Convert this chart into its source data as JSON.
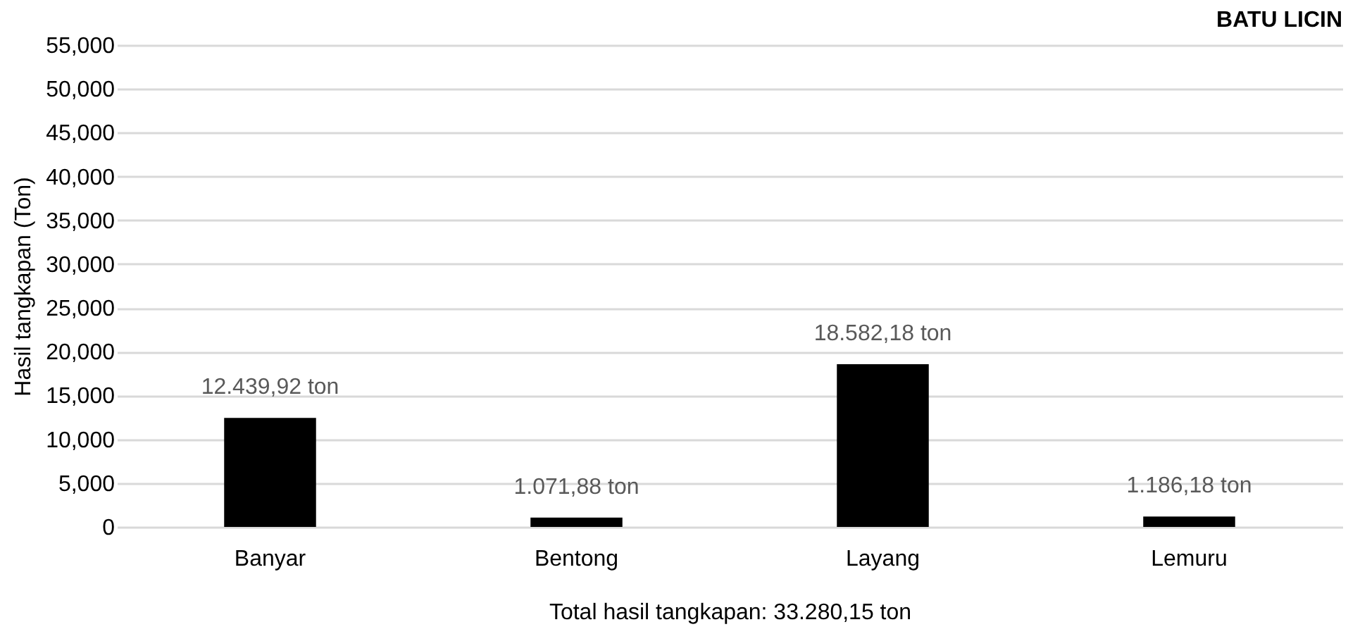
{
  "chart_data": {
    "type": "bar",
    "title": "BATU LICIN",
    "ylabel": "Hasil tangkapan (Ton)",
    "xlabel": "Total hasil tangkapan: 33.280,15 ton",
    "categories": [
      "Banyar",
      "Bentong",
      "Layang",
      "Lemuru"
    ],
    "values": [
      12439.92,
      1071.88,
      18582.18,
      1186.18
    ],
    "value_labels": [
      "12.439,92 ton",
      "1.071,88 ton",
      "18.582,18 ton",
      "1.186,18 ton"
    ],
    "color": "#000000",
    "ylim": [
      0,
      55000
    ],
    "yticks": [
      0,
      {
        "value": 5000,
        "label": "5,000"
      },
      {
        "value": 10000,
        "label": "10,000"
      },
      {
        "value": 15000,
        "label": "15,000"
      },
      {
        "value": 20000,
        "label": "20,000"
      },
      {
        "value": 25000,
        "label": "25,000"
      },
      {
        "value": 30000,
        "label": "30,000"
      },
      {
        "value": 35000,
        "label": "35,000"
      },
      {
        "value": 40000,
        "label": "40,000"
      },
      {
        "value": 45000,
        "label": "45,000"
      },
      {
        "value": 50000,
        "label": "50,000"
      },
      {
        "value": 55000,
        "label": "55,000"
      }
    ],
    "grid": "y"
  }
}
